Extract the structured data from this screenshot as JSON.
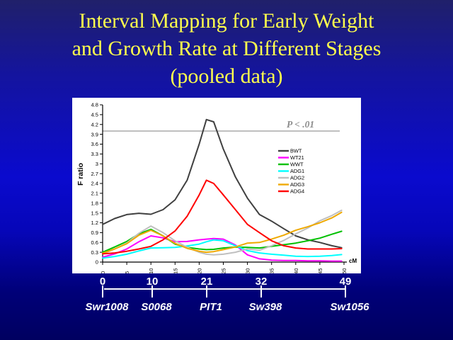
{
  "slide": {
    "title_lines": [
      "Interval Mapping for Early Weight",
      "and Growth Rate at Different Stages",
      "(pooled data)"
    ]
  },
  "chart_data": {
    "type": "line",
    "title": "",
    "xlabel": "cM",
    "ylabel": "F ratio",
    "xlim": [
      0,
      50
    ],
    "ylim": [
      0,
      4.8
    ],
    "grid": false,
    "legend_position": "inside-right",
    "x_ticks": [
      0,
      5,
      10,
      15,
      20,
      25,
      30,
      35,
      40,
      45,
      50
    ],
    "y_ticks": [
      0,
      0.3,
      0.6,
      0.9,
      1.2,
      1.5,
      1.8,
      2.1,
      2.4,
      2.7,
      3,
      3.3,
      3.6,
      3.9,
      4.2,
      4.5,
      4.8
    ],
    "threshold": {
      "label": "P < .01",
      "value": 4.0,
      "line_color": "#999999",
      "text_color": "#8c8c8c"
    },
    "x": [
      0,
      2.5,
      5,
      7.5,
      10,
      12.5,
      15,
      17.5,
      20,
      21.5,
      23,
      25,
      27.5,
      30,
      32.5,
      35,
      37.5,
      40,
      42.5,
      45,
      47.5,
      49.5
    ],
    "series": [
      {
        "name": "BWT",
        "color": "#404040",
        "values": [
          1.15,
          1.33,
          1.45,
          1.49,
          1.46,
          1.6,
          1.9,
          2.5,
          3.6,
          4.35,
          4.28,
          3.45,
          2.6,
          1.95,
          1.45,
          1.25,
          1.02,
          0.8,
          0.68,
          0.6,
          0.5,
          0.44
        ]
      },
      {
        "name": "WT21",
        "color": "#ff00ff",
        "values": [
          0.15,
          0.25,
          0.4,
          0.62,
          0.8,
          0.74,
          0.62,
          0.63,
          0.68,
          0.7,
          0.72,
          0.7,
          0.52,
          0.22,
          0.1,
          0.06,
          0.05,
          0.05,
          0.04,
          0.04,
          0.03,
          0.03
        ]
      },
      {
        "name": "WWT",
        "color": "#00c000",
        "values": [
          0.3,
          0.46,
          0.63,
          0.86,
          1.0,
          0.8,
          0.55,
          0.45,
          0.4,
          0.38,
          0.39,
          0.43,
          0.46,
          0.45,
          0.43,
          0.48,
          0.53,
          0.58,
          0.65,
          0.73,
          0.85,
          0.94
        ]
      },
      {
        "name": "ADG1",
        "color": "#00ffff",
        "values": [
          0.12,
          0.17,
          0.24,
          0.34,
          0.43,
          0.44,
          0.45,
          0.49,
          0.55,
          0.62,
          0.68,
          0.65,
          0.5,
          0.35,
          0.28,
          0.24,
          0.21,
          0.18,
          0.17,
          0.18,
          0.2,
          0.23
        ]
      },
      {
        "name": "ADG2",
        "color": "#c0c0c0",
        "values": [
          0.25,
          0.4,
          0.58,
          0.88,
          1.1,
          0.9,
          0.65,
          0.45,
          0.3,
          0.24,
          0.22,
          0.24,
          0.3,
          0.4,
          0.36,
          0.5,
          0.66,
          0.86,
          1.04,
          1.26,
          1.42,
          1.58
        ]
      },
      {
        "name": "ADG3",
        "color": "#efa900",
        "values": [
          0.27,
          0.4,
          0.56,
          0.82,
          0.97,
          0.8,
          0.57,
          0.42,
          0.33,
          0.3,
          0.32,
          0.38,
          0.46,
          0.58,
          0.6,
          0.7,
          0.82,
          0.97,
          1.08,
          1.2,
          1.35,
          1.52
        ]
      },
      {
        "name": "ADG4",
        "color": "#ff0000",
        "values": [
          0.25,
          0.28,
          0.33,
          0.4,
          0.48,
          0.68,
          0.95,
          1.4,
          2.05,
          2.5,
          2.4,
          2.05,
          1.6,
          1.15,
          0.9,
          0.65,
          0.5,
          0.43,
          0.4,
          0.4,
          0.4,
          0.41
        ]
      }
    ]
  },
  "map_scale": {
    "positions": [
      0,
      10,
      21,
      32,
      49
    ],
    "position_labels": [
      "0",
      "10",
      "21",
      "32",
      "49"
    ],
    "markers": [
      "Swr1008",
      "S0068",
      "PIT1",
      "Sw398",
      "Sw1056"
    ]
  }
}
